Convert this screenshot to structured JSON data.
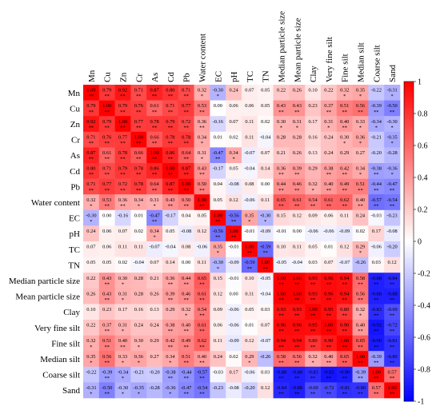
{
  "chart_data": {
    "type": "heatmap",
    "variables": [
      "Mn",
      "Cu",
      "Zn",
      "Cr",
      "As",
      "Cd",
      "Pb",
      "Water content",
      "EC",
      "pH",
      "TC",
      "TN",
      "Median particle size",
      "Mean particle size",
      "Clay",
      "Very fine silt",
      "Fine silt",
      "Median silt",
      "Coarse silt",
      "Sand"
    ],
    "matrix": [
      [
        1.0,
        0.79,
        0.92,
        0.71,
        0.87,
        0.8,
        0.71,
        0.32,
        -0.3,
        0.24,
        0.07,
        0.05,
        0.22,
        0.26,
        0.1,
        0.22,
        0.32,
        0.35,
        -0.22,
        -0.31
      ],
      [
        0.79,
        1.0,
        0.79,
        0.76,
        0.61,
        0.71,
        0.77,
        0.53,
        0.0,
        0.06,
        0.06,
        0.05,
        0.43,
        0.43,
        0.23,
        0.37,
        0.51,
        0.56,
        -0.39,
        -0.5
      ],
      [
        0.92,
        0.79,
        1.0,
        0.77,
        0.78,
        0.79,
        0.72,
        0.36,
        -0.16,
        0.07,
        0.11,
        0.02,
        0.3,
        0.31,
        0.17,
        0.31,
        0.4,
        0.33,
        -0.34,
        -0.3
      ],
      [
        0.71,
        0.76,
        0.77,
        1.0,
        0.66,
        0.78,
        0.78,
        0.34,
        0.01,
        0.02,
        0.11,
        -0.04,
        0.28,
        0.28,
        0.16,
        0.24,
        0.3,
        0.36,
        -0.21,
        -0.35
      ],
      [
        0.87,
        0.61,
        0.78,
        0.66,
        1.0,
        0.86,
        0.64,
        0.31,
        -0.47,
        0.34,
        -0.07,
        0.07,
        0.21,
        0.26,
        0.13,
        0.24,
        0.29,
        0.27,
        -0.2,
        -0.28
      ],
      [
        0.8,
        0.71,
        0.79,
        0.78,
        0.86,
        1.0,
        0.87,
        0.43,
        -0.17,
        0.05,
        -0.04,
        0.14,
        0.36,
        0.39,
        0.29,
        0.38,
        0.42,
        0.34,
        -0.38,
        -0.36
      ],
      [
        0.71,
        0.77,
        0.72,
        0.78,
        0.64,
        0.87,
        1.0,
        0.5,
        0.04,
        -0.08,
        0.08,
        0.0,
        0.44,
        0.46,
        0.32,
        0.4,
        0.49,
        0.51,
        -0.44,
        -0.47
      ],
      [
        0.32,
        0.53,
        0.36,
        0.34,
        0.31,
        0.43,
        0.5,
        1.0,
        0.05,
        0.12,
        -0.06,
        0.11,
        0.65,
        0.61,
        0.54,
        0.61,
        0.62,
        0.4,
        -0.57,
        -0.54
      ],
      [
        -0.3,
        0.0,
        -0.16,
        0.01,
        -0.47,
        -0.17,
        0.04,
        0.05,
        1.0,
        -0.56,
        0.35,
        -0.3,
        0.15,
        0.12,
        0.09,
        0.06,
        0.11,
        0.24,
        -0.03,
        -0.23
      ],
      [
        0.24,
        0.06,
        0.07,
        0.02,
        0.34,
        0.05,
        -0.08,
        0.12,
        -0.56,
        1.0,
        -0.01,
        -0.09,
        -0.01,
        0.0,
        -0.06,
        -0.06,
        -0.09,
        0.02,
        0.17,
        -0.08
      ],
      [
        0.07,
        0.06,
        0.11,
        0.11,
        -0.07,
        -0.04,
        0.08,
        -0.06,
        0.35,
        -0.01,
        1.0,
        -0.59,
        0.1,
        0.11,
        0.05,
        0.01,
        0.12,
        0.29,
        -0.06,
        -0.2
      ],
      [
        0.05,
        0.05,
        0.02,
        -0.04,
        0.07,
        0.14,
        0.0,
        0.11,
        -0.3,
        -0.09,
        -0.59,
        1.0,
        -0.05,
        -0.04,
        0.03,
        0.07,
        -0.07,
        -0.26,
        0.03,
        0.12
      ],
      [
        0.22,
        0.43,
        0.3,
        0.28,
        0.21,
        0.36,
        0.44,
        0.65,
        0.15,
        -0.01,
        0.1,
        -0.05,
        1.0,
        1.0,
        0.93,
        0.96,
        0.94,
        0.58,
        -0.88,
        -0.84
      ],
      [
        0.26,
        0.43,
        0.31,
        0.28,
        0.26,
        0.39,
        0.46,
        0.61,
        0.12,
        0.0,
        0.11,
        -0.04,
        1.0,
        1.0,
        0.93,
        0.96,
        0.94,
        0.56,
        -0.88,
        -0.88
      ],
      [
        0.1,
        0.23,
        0.17,
        0.16,
        0.13,
        0.29,
        0.32,
        0.54,
        0.09,
        -0.06,
        0.05,
        0.03,
        0.93,
        0.93,
        1.0,
        0.95,
        0.8,
        0.32,
        -0.83,
        -0.69
      ],
      [
        0.22,
        0.37,
        0.31,
        0.24,
        0.24,
        0.38,
        0.4,
        0.61,
        0.06,
        -0.06,
        0.01,
        0.07,
        0.96,
        0.96,
        0.95,
        1.0,
        0.9,
        0.4,
        -0.92,
        -0.72
      ],
      [
        0.32,
        0.51,
        0.4,
        0.3,
        0.29,
        0.42,
        0.49,
        0.62,
        0.11,
        -0.09,
        0.12,
        -0.07,
        0.94,
        0.94,
        0.8,
        0.9,
        1.0,
        0.65,
        -0.9,
        -0.81
      ],
      [
        0.35,
        0.56,
        0.33,
        0.36,
        0.27,
        0.34,
        0.51,
        0.4,
        0.24,
        0.02,
        0.29,
        -0.26,
        0.58,
        0.56,
        0.32,
        0.4,
        0.65,
        1.0,
        -0.39,
        -0.8
      ],
      [
        -0.22,
        -0.39,
        -0.34,
        -0.21,
        -0.2,
        -0.38,
        -0.44,
        -0.57,
        -0.03,
        0.17,
        -0.06,
        0.03,
        -0.88,
        -0.88,
        -0.83,
        -0.92,
        -0.9,
        -0.39,
        1.0,
        0.57
      ],
      [
        -0.31,
        -0.5,
        -0.3,
        -0.35,
        -0.28,
        -0.36,
        -0.47,
        -0.54,
        -0.23,
        -0.08,
        -0.2,
        0.12,
        -0.84,
        -0.88,
        -0.69,
        -0.72,
        -0.81,
        -0.8,
        0.57,
        1.0
      ]
    ],
    "significance": [
      [
        "**",
        "**",
        "**",
        "**",
        "**",
        "**",
        "**",
        "*",
        "*",
        "",
        "",
        "",
        "",
        "",
        "",
        "",
        "*",
        "*",
        "",
        "*"
      ],
      [
        "**",
        "**",
        "**",
        "**",
        "**",
        "**",
        "**",
        "**",
        "",
        "",
        "",
        "",
        "**",
        "**",
        "",
        "**",
        "**",
        "**",
        "**",
        "**"
      ],
      [
        "**",
        "**",
        "**",
        "**",
        "**",
        "**",
        "**",
        "**",
        "",
        "",
        "",
        "",
        "*",
        "*",
        "",
        "*",
        "**",
        "*",
        "*",
        "*"
      ],
      [
        "**",
        "**",
        "**",
        "**",
        "**",
        "**",
        "**",
        "*",
        "",
        "",
        "",
        "",
        "",
        "",
        "",
        "",
        "*",
        "*",
        "",
        "*"
      ],
      [
        "**",
        "**",
        "**",
        "**",
        "**",
        "**",
        "**",
        "*",
        "**",
        "*",
        "",
        "",
        "",
        "",
        "",
        "",
        "",
        "",
        "",
        ""
      ],
      [
        "**",
        "**",
        "**",
        "**",
        "**",
        "**",
        "**",
        "**",
        "",
        "",
        "",
        "",
        "**",
        "**",
        "",
        "**",
        "**",
        "*",
        "**",
        "*"
      ],
      [
        "**",
        "**",
        "**",
        "**",
        "**",
        "**",
        "**",
        "**",
        "",
        "",
        "",
        "",
        "**",
        "**",
        "*",
        "**",
        "**",
        "**",
        "**",
        "**"
      ],
      [
        "*",
        "**",
        "**",
        "*",
        "*",
        "**",
        "**",
        "**",
        "",
        "",
        "",
        "",
        "**",
        "**",
        "**",
        "**",
        "**",
        "**",
        "**",
        "**"
      ],
      [
        "*",
        "",
        "",
        "",
        "**",
        "",
        "",
        "",
        "**",
        "**",
        "*",
        "*",
        "",
        "",
        "",
        "",
        "",
        "",
        "",
        ""
      ],
      [
        "",
        "",
        "",
        "",
        "*",
        "",
        "",
        "",
        "**",
        "**",
        "",
        "",
        "",
        "",
        "",
        "",
        "",
        "",
        "",
        ""
      ],
      [
        "",
        "",
        "",
        "",
        "",
        "",
        "",
        "",
        "*",
        "",
        "**",
        "**",
        "",
        "",
        "",
        "",
        "",
        "*",
        "",
        ""
      ],
      [
        "",
        "",
        "",
        "",
        "",
        "",
        "",
        "",
        "*",
        "",
        "**",
        "**",
        "",
        "",
        "",
        "",
        "",
        "",
        "",
        ""
      ],
      [
        "",
        "**",
        "*",
        "",
        "",
        "**",
        "**",
        "**",
        "",
        "",
        "",
        "",
        "**",
        "**",
        "**",
        "**",
        "**",
        "**",
        "**",
        "**"
      ],
      [
        "",
        "**",
        "*",
        "",
        "",
        "**",
        "**",
        "**",
        "",
        "",
        "",
        "",
        "**",
        "**",
        "**",
        "**",
        "**",
        "**",
        "**",
        "**"
      ],
      [
        "",
        "",
        "",
        "",
        "",
        "",
        "*",
        "**",
        "",
        "",
        "",
        "",
        "**",
        "**",
        "**",
        "**",
        "**",
        "*",
        "**",
        "**"
      ],
      [
        "",
        "**",
        "*",
        "",
        "",
        "**",
        "**",
        "**",
        "",
        "",
        "",
        "",
        "**",
        "**",
        "**",
        "**",
        "**",
        "**",
        "**",
        "**"
      ],
      [
        "*",
        "**",
        "**",
        "*",
        "",
        "**",
        "**",
        "**",
        "",
        "",
        "",
        "",
        "**",
        "**",
        "**",
        "**",
        "**",
        "**",
        "**",
        "**"
      ],
      [
        "*",
        "**",
        "*",
        "*",
        "",
        "*",
        "**",
        "**",
        "",
        "",
        "*",
        "",
        "**",
        "**",
        "*",
        "**",
        "**",
        "**",
        "**",
        "**"
      ],
      [
        "",
        "**",
        "*",
        "",
        "",
        "**",
        "**",
        "**",
        "",
        "",
        "",
        "",
        "**",
        "**",
        "**",
        "**",
        "**",
        "**",
        "**",
        "**"
      ],
      [
        "*",
        "**",
        "*",
        "*",
        "",
        "*",
        "**",
        "**",
        "",
        "",
        "",
        "",
        "**",
        "**",
        "**",
        "**",
        "**",
        "**",
        "**",
        "**"
      ]
    ],
    "color_scale": {
      "min": -1,
      "max": 1,
      "ticks": [
        1,
        0.8,
        0.6,
        0.4,
        0.2,
        0,
        -0.2,
        -0.4,
        -0.6,
        -0.8,
        -1
      ],
      "negative_color": "#0000ff",
      "neutral_color": "#ffffff",
      "positive_color": "#ff0000"
    },
    "title": "",
    "grid": false,
    "legend": "colorbar-right"
  }
}
